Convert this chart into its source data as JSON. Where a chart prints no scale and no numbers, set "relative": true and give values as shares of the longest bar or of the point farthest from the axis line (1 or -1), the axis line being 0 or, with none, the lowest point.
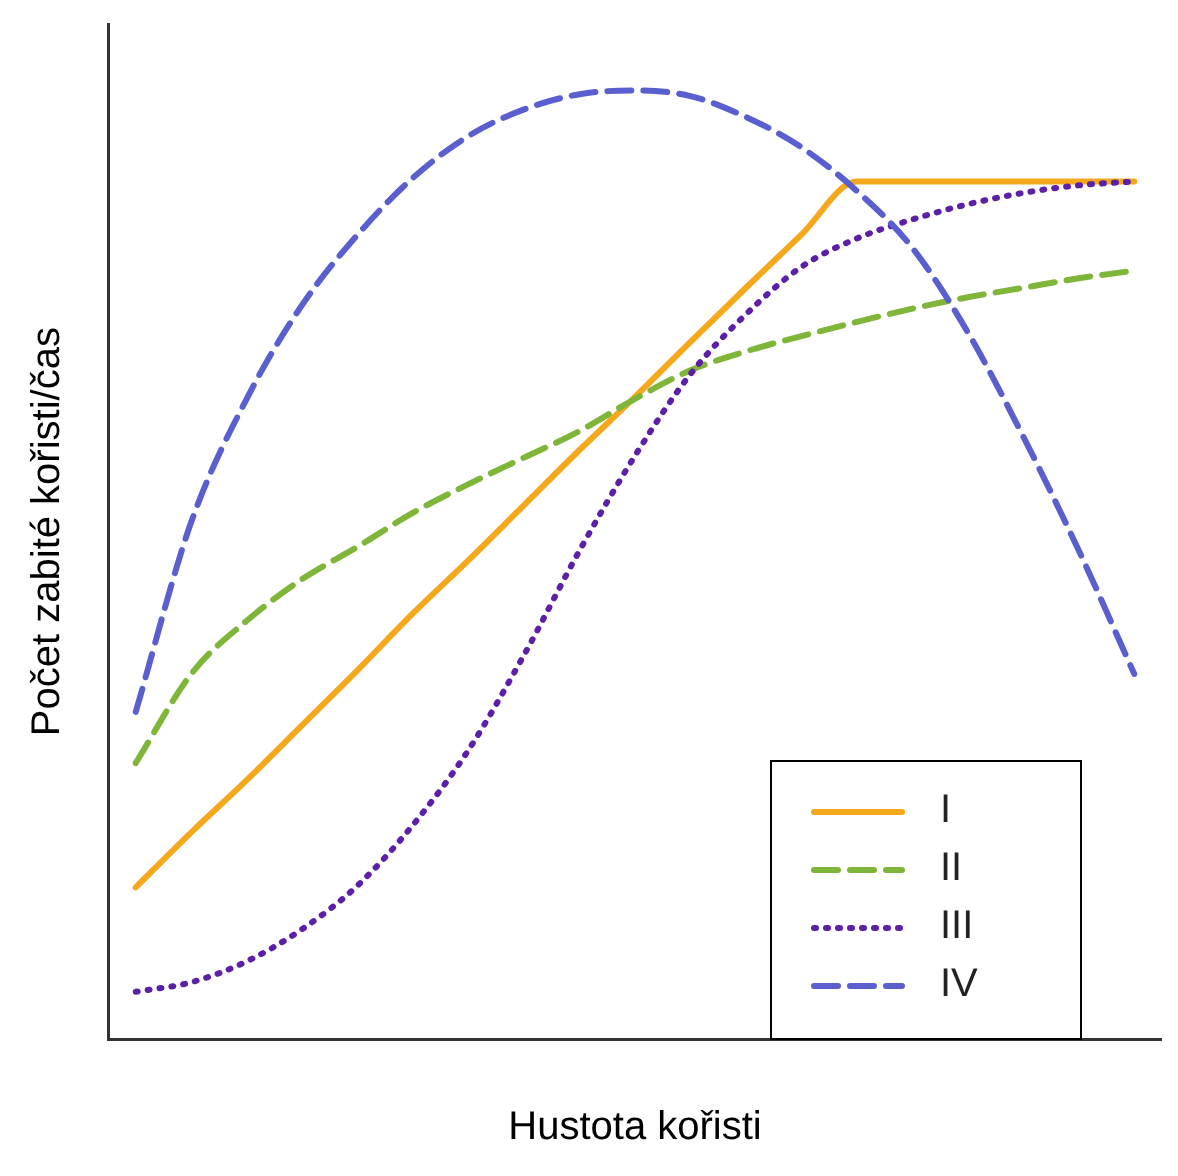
{
  "chart_data": {
    "type": "line",
    "xlabel": "Hustota kořisti",
    "ylabel": "Počet zabité kořisti/čas",
    "relative": true,
    "grid": false,
    "legend": "bottom right",
    "marker": "none",
    "categories": [
      null,
      null,
      null,
      null,
      null,
      null,
      null,
      null,
      null,
      null,
      null,
      null,
      null,
      null,
      null,
      null,
      null,
      null,
      null
    ],
    "series": [
      {
        "name": "I",
        "color": "#f5a81c",
        "line_style": "solid",
        "values": [
          0.16,
          0.218,
          0.273,
          0.331,
          0.389,
          0.449,
          0.505,
          0.563,
          0.621,
          0.677,
          0.735,
          0.792,
          0.848,
          0.904,
          0.904,
          0.904,
          0.904,
          0.904,
          0.904
        ]
      },
      {
        "name": "II",
        "color": "#7fb539",
        "line_style": "dashed",
        "values": [
          0.291,
          0.385,
          0.441,
          0.485,
          0.519,
          0.555,
          0.585,
          0.613,
          0.641,
          0.675,
          0.705,
          0.725,
          0.741,
          0.756,
          0.77,
          0.782,
          0.792,
          0.802,
          0.81
        ]
      },
      {
        "name": "III",
        "color": "#5b1fa8",
        "line_style": "dotted",
        "values": [
          0.05,
          0.06,
          0.082,
          0.116,
          0.162,
          0.226,
          0.305,
          0.405,
          0.515,
          0.615,
          0.701,
          0.764,
          0.814,
          0.844,
          0.864,
          0.88,
          0.892,
          0.9,
          0.904
        ]
      },
      {
        "name": "IV",
        "color": "#5a5fd0",
        "line_style": "dashed",
        "values": [
          0.345,
          0.545,
          0.675,
          0.774,
          0.848,
          0.908,
          0.952,
          0.98,
          0.996,
          1,
          0.994,
          0.972,
          0.94,
          0.894,
          0.834,
          0.745,
          0.635,
          0.515,
          0.385
        ]
      }
    ]
  }
}
